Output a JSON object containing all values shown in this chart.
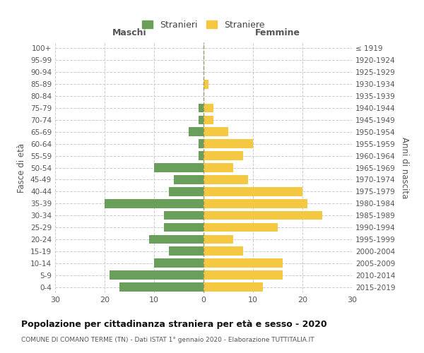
{
  "age_groups": [
    "0-4",
    "5-9",
    "10-14",
    "15-19",
    "20-24",
    "25-29",
    "30-34",
    "35-39",
    "40-44",
    "45-49",
    "50-54",
    "55-59",
    "60-64",
    "65-69",
    "70-74",
    "75-79",
    "80-84",
    "85-89",
    "90-94",
    "95-99",
    "100+"
  ],
  "birth_years": [
    "2015-2019",
    "2010-2014",
    "2005-2009",
    "2000-2004",
    "1995-1999",
    "1990-1994",
    "1985-1989",
    "1980-1984",
    "1975-1979",
    "1970-1974",
    "1965-1969",
    "1960-1964",
    "1955-1959",
    "1950-1954",
    "1945-1949",
    "1940-1944",
    "1935-1939",
    "1930-1934",
    "1925-1929",
    "1920-1924",
    "≤ 1919"
  ],
  "maschi": [
    17,
    19,
    10,
    7,
    11,
    8,
    8,
    20,
    7,
    6,
    10,
    1,
    1,
    3,
    1,
    1,
    0,
    0,
    0,
    0,
    0
  ],
  "femmine": [
    12,
    16,
    16,
    8,
    6,
    15,
    24,
    21,
    20,
    9,
    6,
    8,
    10,
    5,
    2,
    2,
    0,
    1,
    0,
    0,
    0
  ],
  "color_maschi": "#6a9f5b",
  "color_femmine": "#f5c842",
  "bg_color": "#ffffff",
  "grid_color": "#cccccc",
  "title": "Popolazione per cittadinanza straniera per età e sesso - 2020",
  "subtitle": "COMUNE DI COMANO TERME (TN) - Dati ISTAT 1° gennaio 2020 - Elaborazione TUTTITALIA.IT",
  "xlabel_left": "Maschi",
  "xlabel_right": "Femmine",
  "ylabel_left": "Fasce di età",
  "ylabel_right": "Anni di nascita",
  "legend_maschi": "Stranieri",
  "legend_femmine": "Straniere",
  "xlim": 30
}
